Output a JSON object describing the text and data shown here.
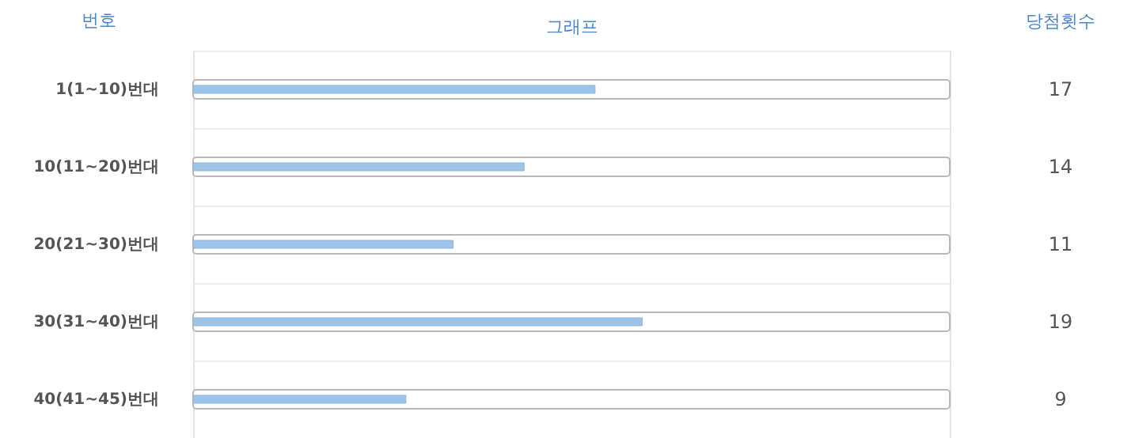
{
  "chart_data": {
    "type": "bar",
    "orientation": "horizontal",
    "ylabel": "번호",
    "xlabel": "그래프",
    "legend_title": "당첨횟수",
    "categories": [
      "1(1~10)번대",
      "10(11~20)번대",
      "20(21~30)번대",
      "30(31~40)번대",
      "40(41~45)번대"
    ],
    "values": [
      17,
      14,
      11,
      19,
      9
    ],
    "color": "#9dc3e6",
    "xlim": [
      0,
      32
    ],
    "data_labels": true,
    "tick_labels": "y"
  }
}
